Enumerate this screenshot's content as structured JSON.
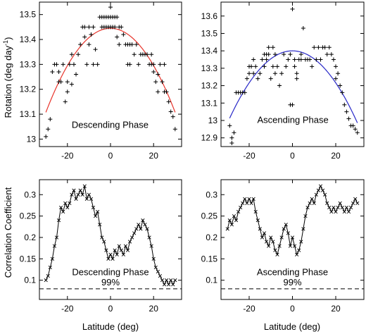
{
  "figure": {
    "x_axis_label": "Latitude (deg)",
    "y_axis_label_top_prefix": "Rotation (deg day",
    "y_axis_label_top_sup": "-1",
    "y_axis_label_top_suffix": ")",
    "y_axis_label_bottom": "Correlation Coefficient"
  },
  "chart_data": [
    {
      "id": "tl",
      "type": "scatter",
      "annotation": "Descending Phase",
      "xlim": [
        -33,
        33
      ],
      "ylim": [
        12.97,
        13.55
      ],
      "xticks": [
        -20,
        0,
        20
      ],
      "yticks": [
        13,
        13.1,
        13.2,
        13.3,
        13.4,
        13.5
      ],
      "fit_color": "#e8332a",
      "fit": {
        "a": 13.445,
        "k": 0.000375,
        "x_range": [
          -30,
          30
        ]
      },
      "points": [
        [
          -30,
          13.01
        ],
        [
          -29,
          13.04
        ],
        [
          -28,
          13.08
        ],
        [
          -27,
          13.27
        ],
        [
          -26,
          13.3
        ],
        [
          -25,
          13.3
        ],
        [
          -24,
          13.23
        ],
        [
          -24,
          13.27
        ],
        [
          -23,
          13.23
        ],
        [
          -22,
          13.3
        ],
        [
          -21,
          13.15
        ],
        [
          -20,
          13.19
        ],
        [
          -20,
          13.23
        ],
        [
          -19,
          13.3
        ],
        [
          -18,
          13.22
        ],
        [
          -18,
          13.34
        ],
        [
          -17,
          13.3
        ],
        [
          -16,
          13.26
        ],
        [
          -15,
          13.34
        ],
        [
          -14,
          13.38
        ],
        [
          -13,
          13.45
        ],
        [
          -12,
          13.41
        ],
        [
          -12,
          13.45
        ],
        [
          -11,
          13.3
        ],
        [
          -10,
          13.38
        ],
        [
          -10,
          13.45
        ],
        [
          -9,
          13.42
        ],
        [
          -8,
          13.3
        ],
        [
          -8,
          13.45
        ],
        [
          -7,
          13.36
        ],
        [
          -6,
          13.3
        ],
        [
          -5,
          13.49
        ],
        [
          -4,
          13.45
        ],
        [
          -4,
          13.49
        ],
        [
          -3,
          13.45
        ],
        [
          -3,
          13.49
        ],
        [
          -2,
          13.45
        ],
        [
          -2,
          13.49
        ],
        [
          -1,
          13.45
        ],
        [
          -1,
          13.49
        ],
        [
          0,
          13.45
        ],
        [
          0,
          13.49
        ],
        [
          0,
          13.53
        ],
        [
          1,
          13.45
        ],
        [
          1,
          13.49
        ],
        [
          2,
          13.45
        ],
        [
          2,
          13.49
        ],
        [
          3,
          13.41
        ],
        [
          3,
          13.49
        ],
        [
          4,
          13.38
        ],
        [
          4,
          13.45
        ],
        [
          5,
          13.45
        ],
        [
          6,
          13.42
        ],
        [
          7,
          13.38
        ],
        [
          8,
          13.3
        ],
        [
          8,
          13.38
        ],
        [
          9,
          13.38
        ],
        [
          9,
          13.3
        ],
        [
          10,
          13.38
        ],
        [
          11,
          13.34
        ],
        [
          12,
          13.38
        ],
        [
          13,
          13.3
        ],
        [
          14,
          13.34
        ],
        [
          15,
          13.34
        ],
        [
          16,
          13.34
        ],
        [
          17,
          13.34
        ],
        [
          18,
          13.3
        ],
        [
          19,
          13.34
        ],
        [
          19,
          13.3
        ],
        [
          20,
          13.27
        ],
        [
          20,
          13.3
        ],
        [
          21,
          13.23
        ],
        [
          22,
          13.26
        ],
        [
          22,
          13.19
        ],
        [
          23,
          13.3
        ],
        [
          24,
          13.23
        ],
        [
          25,
          13.19
        ],
        [
          25,
          13.3
        ],
        [
          26,
          13.19
        ],
        [
          27,
          13.15
        ],
        [
          28,
          13.11
        ],
        [
          29,
          13.09
        ],
        [
          30,
          13.04
        ]
      ]
    },
    {
      "id": "tr",
      "type": "scatter",
      "annotation": "Ascending Phase",
      "xlim": [
        -33,
        33
      ],
      "ylim": [
        12.85,
        13.68
      ],
      "xticks": [
        -20,
        0,
        20
      ],
      "yticks": [
        12.9,
        13,
        13.1,
        13.2,
        13.3,
        13.4,
        13.5,
        13.6
      ],
      "fit_color": "#2828c8",
      "fit": {
        "a": 13.4,
        "k": 0.00046,
        "x_range": [
          -29,
          30
        ]
      },
      "points": [
        [
          -29,
          12.97
        ],
        [
          -28,
          12.9
        ],
        [
          -28,
          12.87
        ],
        [
          -27,
          12.93
        ],
        [
          -26,
          13.16
        ],
        [
          -25,
          13.16
        ],
        [
          -24,
          13.16
        ],
        [
          -23,
          13.16
        ],
        [
          -22,
          13.16
        ],
        [
          -21,
          13.24
        ],
        [
          -20,
          13.27
        ],
        [
          -20,
          13.31
        ],
        [
          -19,
          13.31
        ],
        [
          -18,
          13.27
        ],
        [
          -18,
          13.35
        ],
        [
          -17,
          13.31
        ],
        [
          -16,
          13.24
        ],
        [
          -15,
          13.27
        ],
        [
          -14,
          13.35
        ],
        [
          -13,
          13.31
        ],
        [
          -13,
          13.38
        ],
        [
          -12,
          13.35
        ],
        [
          -12,
          13.38
        ],
        [
          -11,
          13.42
        ],
        [
          -11,
          13.38
        ],
        [
          -10,
          13.24
        ],
        [
          -9,
          13.31
        ],
        [
          -9,
          13.42
        ],
        [
          -8,
          13.38
        ],
        [
          -8,
          13.27
        ],
        [
          -7,
          13.31
        ],
        [
          -6,
          13.2
        ],
        [
          -5,
          13.27
        ],
        [
          -4,
          13.38
        ],
        [
          -3,
          13.31
        ],
        [
          -2,
          13.35
        ],
        [
          -1,
          13.38
        ],
        [
          -1,
          13.09
        ],
        [
          0,
          13.09
        ],
        [
          0,
          13.64
        ],
        [
          1,
          13.35
        ],
        [
          1,
          13.31
        ],
        [
          2,
          13.24
        ],
        [
          2,
          13.27
        ],
        [
          3,
          13.35
        ],
        [
          4,
          13.38
        ],
        [
          4,
          13.35
        ],
        [
          5,
          13.53
        ],
        [
          6,
          13.35
        ],
        [
          7,
          13.35
        ],
        [
          8,
          13.35
        ],
        [
          9,
          13.31
        ],
        [
          10,
          13.42
        ],
        [
          11,
          13.35
        ],
        [
          12,
          13.42
        ],
        [
          13,
          13.35
        ],
        [
          14,
          13.42
        ],
        [
          15,
          13.42
        ],
        [
          16,
          13.38
        ],
        [
          17,
          13.42
        ],
        [
          18,
          13.38
        ],
        [
          19,
          13.35
        ],
        [
          20,
          13.31
        ],
        [
          20,
          13.24
        ],
        [
          21,
          13.27
        ],
        [
          22,
          13.2
        ],
        [
          23,
          13.16
        ],
        [
          24,
          13.09
        ],
        [
          25,
          13.05
        ],
        [
          26,
          13.01
        ],
        [
          27,
          12.97
        ],
        [
          28,
          12.97
        ],
        [
          29,
          12.95
        ],
        [
          30,
          12.93
        ]
      ]
    },
    {
      "id": "bl",
      "type": "line",
      "annotation": "Descending Phase",
      "threshold": 0.08,
      "threshold_label": "99%",
      "xlim": [
        -33,
        33
      ],
      "ylim": [
        0.055,
        0.335
      ],
      "xticks": [
        -20,
        0,
        20
      ],
      "yticks": [
        0.1,
        0.15,
        0.2,
        0.25,
        0.3
      ],
      "points": [
        [
          -30,
          0.1
        ],
        [
          -29,
          0.11
        ],
        [
          -28,
          0.13
        ],
        [
          -27,
          0.15
        ],
        [
          -26,
          0.18
        ],
        [
          -25,
          0.2
        ],
        [
          -24,
          0.24
        ],
        [
          -23,
          0.27
        ],
        [
          -22,
          0.26
        ],
        [
          -21,
          0.28
        ],
        [
          -20,
          0.27
        ],
        [
          -19,
          0.28
        ],
        [
          -18,
          0.3
        ],
        [
          -17,
          0.31
        ],
        [
          -16,
          0.29
        ],
        [
          -15,
          0.3
        ],
        [
          -14,
          0.31
        ],
        [
          -13,
          0.3
        ],
        [
          -12,
          0.32
        ],
        [
          -11,
          0.29
        ],
        [
          -10,
          0.3
        ],
        [
          -9,
          0.29
        ],
        [
          -8,
          0.27
        ],
        [
          -7,
          0.25
        ],
        [
          -6,
          0.26
        ],
        [
          -5,
          0.23
        ],
        [
          -4,
          0.2
        ],
        [
          -3,
          0.19
        ],
        [
          -2,
          0.17
        ],
        [
          -1,
          0.15
        ],
        [
          0,
          0.16
        ],
        [
          1,
          0.15
        ],
        [
          2,
          0.17
        ],
        [
          3,
          0.16
        ],
        [
          4,
          0.18
        ],
        [
          5,
          0.17
        ],
        [
          6,
          0.16
        ],
        [
          7,
          0.18
        ],
        [
          8,
          0.17
        ],
        [
          9,
          0.19
        ],
        [
          10,
          0.2
        ],
        [
          11,
          0.21
        ],
        [
          12,
          0.22
        ],
        [
          13,
          0.23
        ],
        [
          14,
          0.22
        ],
        [
          15,
          0.24
        ],
        [
          16,
          0.23
        ],
        [
          17,
          0.22
        ],
        [
          18,
          0.2
        ],
        [
          19,
          0.18
        ],
        [
          20,
          0.15
        ],
        [
          21,
          0.13
        ],
        [
          22,
          0.12
        ],
        [
          23,
          0.11
        ],
        [
          24,
          0.1
        ],
        [
          25,
          0.09
        ],
        [
          26,
          0.1
        ],
        [
          27,
          0.09
        ],
        [
          28,
          0.1
        ],
        [
          29,
          0.09
        ],
        [
          30,
          0.1
        ]
      ]
    },
    {
      "id": "br",
      "type": "line",
      "annotation": "Ascending Phase",
      "threshold": 0.08,
      "threshold_label": "99%",
      "xlim": [
        -33,
        33
      ],
      "ylim": [
        0.055,
        0.335
      ],
      "xticks": [
        -20,
        0,
        20
      ],
      "yticks": [
        0.1,
        0.15,
        0.2,
        0.25,
        0.3
      ],
      "points": [
        [
          -30,
          0.22
        ],
        [
          -29,
          0.24
        ],
        [
          -28,
          0.23
        ],
        [
          -27,
          0.25
        ],
        [
          -26,
          0.24
        ],
        [
          -25,
          0.26
        ],
        [
          -24,
          0.27
        ],
        [
          -23,
          0.28
        ],
        [
          -22,
          0.29
        ],
        [
          -21,
          0.28
        ],
        [
          -20,
          0.29
        ],
        [
          -19,
          0.28
        ],
        [
          -18,
          0.29
        ],
        [
          -17,
          0.26
        ],
        [
          -16,
          0.24
        ],
        [
          -15,
          0.22
        ],
        [
          -14,
          0.2
        ],
        [
          -13,
          0.21
        ],
        [
          -12,
          0.19
        ],
        [
          -11,
          0.18
        ],
        [
          -10,
          0.2
        ],
        [
          -9,
          0.19
        ],
        [
          -8,
          0.17
        ],
        [
          -7,
          0.16
        ],
        [
          -6,
          0.18
        ],
        [
          -5,
          0.2
        ],
        [
          -4,
          0.22
        ],
        [
          -3,
          0.23
        ],
        [
          -2,
          0.21
        ],
        [
          -1,
          0.18
        ],
        [
          0,
          0.2
        ],
        [
          1,
          0.18
        ],
        [
          2,
          0.16
        ],
        [
          3,
          0.17
        ],
        [
          4,
          0.19
        ],
        [
          5,
          0.22
        ],
        [
          6,
          0.25
        ],
        [
          7,
          0.27
        ],
        [
          8,
          0.28
        ],
        [
          9,
          0.29
        ],
        [
          10,
          0.28
        ],
        [
          11,
          0.3
        ],
        [
          12,
          0.31
        ],
        [
          13,
          0.32
        ],
        [
          14,
          0.31
        ],
        [
          15,
          0.3
        ],
        [
          16,
          0.28
        ],
        [
          17,
          0.27
        ],
        [
          18,
          0.26
        ],
        [
          19,
          0.27
        ],
        [
          20,
          0.26
        ],
        [
          21,
          0.27
        ],
        [
          22,
          0.28
        ],
        [
          23,
          0.27
        ],
        [
          24,
          0.26
        ],
        [
          25,
          0.27
        ],
        [
          26,
          0.26
        ],
        [
          27,
          0.27
        ],
        [
          28,
          0.28
        ],
        [
          29,
          0.29
        ],
        [
          30,
          0.28
        ]
      ]
    }
  ]
}
